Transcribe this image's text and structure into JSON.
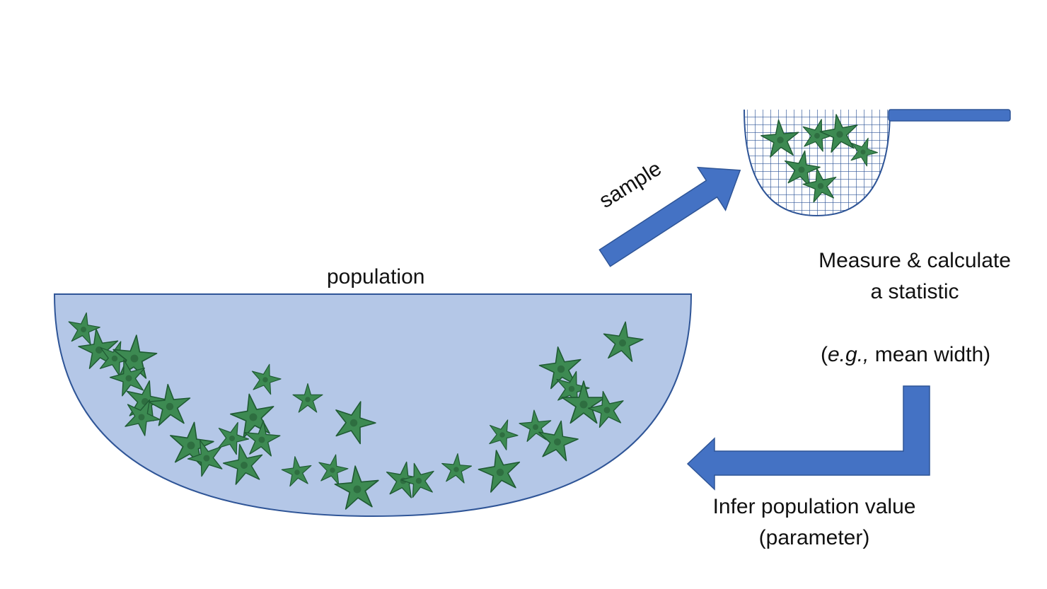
{
  "labels": {
    "population": "population",
    "sample": "sample",
    "measure_line1": "Measure & calculate",
    "measure_line2": "a statistic",
    "example_prefix": "(",
    "example_italic": "e.g.,",
    "example_rest": " mean width)",
    "infer_line1": "Infer population value",
    "infer_line2": "(parameter)"
  },
  "colors": {
    "population_fill": "#b4c7e7",
    "outline": "#2f5597",
    "arrow": "#4472c4",
    "net_grid": "#2f5597",
    "starfish": "#3d8a52",
    "starfish_dark": "#1f5a33"
  },
  "icons": {
    "population": "starfish-icon",
    "sample": "starfish-icon",
    "net": "net-icon",
    "arrow": "arrow-icon"
  }
}
